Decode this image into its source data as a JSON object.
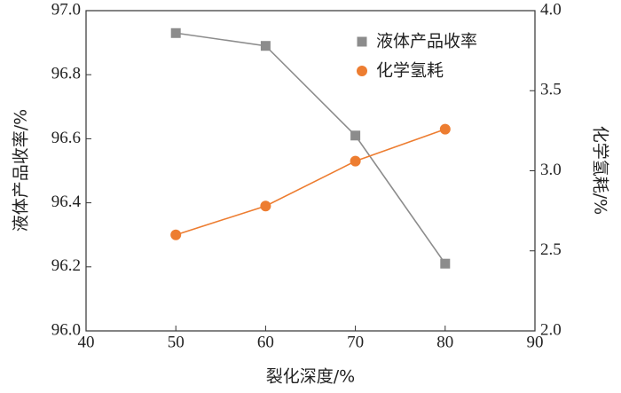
{
  "chart_data": {
    "type": "line",
    "xlabel": "裂化深度/%",
    "ylabel": "液体产品收率/%",
    "y2label": "化学氢耗/%",
    "x": [
      50,
      60,
      70,
      80
    ],
    "series": [
      {
        "name": "液体产品收率",
        "color": "#8c8c8c",
        "marker": "square",
        "axis": "y",
        "values": [
          96.93,
          96.89,
          96.61,
          96.21
        ]
      },
      {
        "name": "化学氢耗",
        "color": "#ed7d31",
        "marker": "circle",
        "axis": "y2",
        "values": [
          2.6,
          2.78,
          3.06,
          3.26
        ]
      }
    ],
    "xlim": [
      40,
      90
    ],
    "xticks": [
      40,
      50,
      60,
      70,
      80,
      90
    ],
    "ylim": [
      96,
      97
    ],
    "yticks": [
      {
        "value": 96,
        "label": "96.0"
      },
      96.2,
      96.4,
      96.6,
      96.8,
      {
        "value": 97,
        "label": "97.0"
      }
    ],
    "y2lim": [
      2,
      4
    ],
    "y2ticks": [
      {
        "value": 2,
        "label": "2.0"
      },
      2.5,
      {
        "value": 3,
        "label": "3.0"
      },
      3.5,
      {
        "value": 4,
        "label": "4.0"
      }
    ],
    "legend": "upper right",
    "grid": false
  }
}
